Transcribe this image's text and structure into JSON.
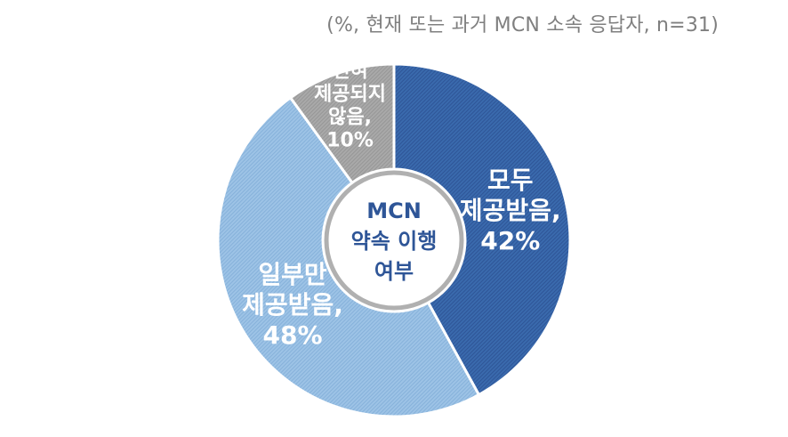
{
  "subtitle": "(%, 현재 또는 과거 MCN 소속 응답자, n=31)",
  "chart_data": {
    "type": "pie",
    "variant": "donut",
    "center_text": [
      "MCN",
      "약속 이행",
      "여부"
    ],
    "slices": [
      {
        "label": [
          "모두",
          "제공받음,",
          "42%"
        ],
        "category": "모두 제공받음",
        "value": 42,
        "color": "#3a6aad",
        "stripe": "#2e5597"
      },
      {
        "label": [
          "일부만",
          "제공받음,",
          "48%"
        ],
        "category": "일부만 제공받음",
        "value": 48,
        "color": "#9dc3e6",
        "stripe": "#86b1da"
      },
      {
        "label": [
          "전혀",
          "제공되지",
          "않음,",
          "10%"
        ],
        "category": "전혀 제공되지 않음",
        "value": 10,
        "color": "#a9a9a9",
        "stripe": "#969696"
      }
    ]
  }
}
